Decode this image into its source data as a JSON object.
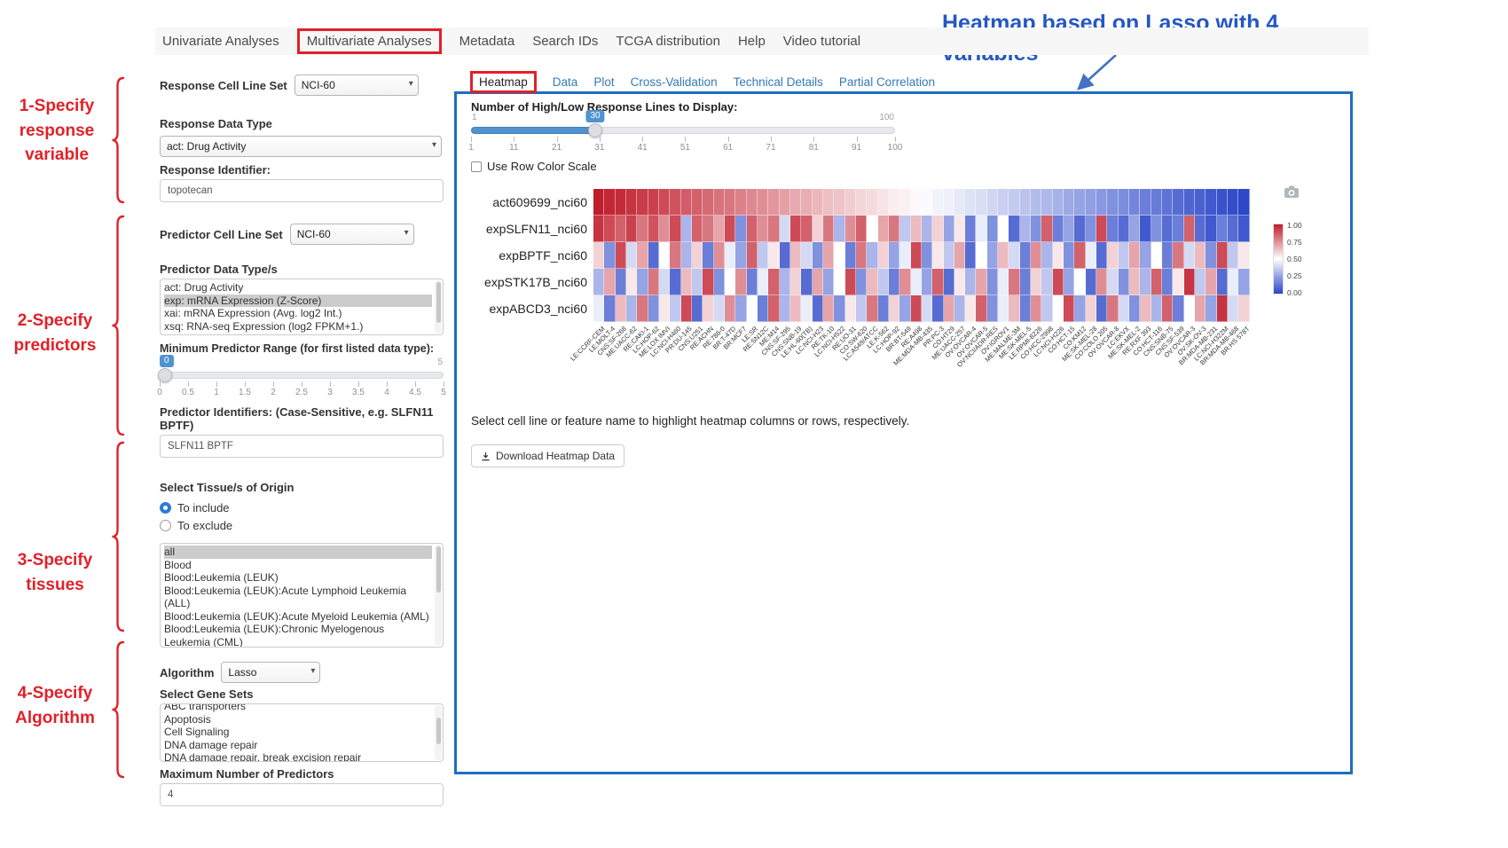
{
  "colors": {
    "annotation_red": "#e02128",
    "annotation_blue": "#2457c5",
    "panel_border_blue": "#1d6fc2",
    "link_blue": "#337ab7",
    "slider_blue": "#5193cf",
    "selected_option_bg": "#cccccc"
  },
  "icons": {
    "camera": "camera-icon",
    "download": "download-icon",
    "dropdown": "caret-down-icon"
  },
  "navbar": {
    "items": [
      {
        "label": "Univariate Analyses",
        "active": false
      },
      {
        "label": "Multivariate Analyses",
        "active": true
      },
      {
        "label": "Metadata",
        "active": false
      },
      {
        "label": "Search IDs",
        "active": false
      },
      {
        "label": "TCGA distribution",
        "active": false
      },
      {
        "label": "Help",
        "active": false
      },
      {
        "label": "Video tutorial",
        "active": false
      }
    ]
  },
  "annotations": {
    "note_line1": "Heatmap based on Lasso with 4",
    "note_line2": "variables",
    "steps": [
      {
        "lines": [
          "1-Specify",
          "response",
          "variable"
        ]
      },
      {
        "lines": [
          "2-Specify",
          "predictors"
        ]
      },
      {
        "lines": [
          "3-Specify",
          "tissues"
        ]
      },
      {
        "lines": [
          "4-Specify",
          "Algorithm"
        ]
      }
    ]
  },
  "sidebar": {
    "response_cell_line_set": {
      "label": "Response Cell Line Set",
      "value": "NCI-60"
    },
    "response_data_type": {
      "label": "Response Data Type",
      "value": "act: Drug Activity"
    },
    "response_identifier": {
      "label": "Response Identifier:",
      "value": "topotecan"
    },
    "predictor_cell_line_set": {
      "label": "Predictor Cell Line Set",
      "value": "NCI-60"
    },
    "predictor_data_types": {
      "label": "Predictor Data Type/s",
      "options": [
        "act: Drug Activity",
        "exp: mRNA Expression (Z-Score)",
        "xai: mRNA Expression (Avg. log2 Int.)",
        "xsq: RNA-seq Expression (log2 FPKM+1.)"
      ],
      "selected": "exp: mRNA Expression (Z-Score)"
    },
    "min_predictor_range": {
      "label": "Minimum Predictor Range (for first listed data type):",
      "min": 0,
      "max": 5,
      "value": 0,
      "ticks": [
        "0",
        "0.5",
        "1",
        "1.5",
        "2",
        "2.5",
        "3",
        "3.5",
        "4",
        "4.5",
        "5"
      ]
    },
    "predictor_identifiers": {
      "label": "Predictor Identifiers: (Case-Sensitive, e.g. SLFN11 BPTF)",
      "value": "SLFN11 BPTF"
    },
    "tissue_origin": {
      "label": "Select Tissue/s of Origin",
      "radios": [
        {
          "label": "To include",
          "checked": true
        },
        {
          "label": "To exclude",
          "checked": false
        }
      ],
      "options": [
        "all",
        "Blood",
        "Blood:Leukemia (LEUK)",
        "Blood:Leukemia (LEUK):Acute Lymphoid Leukemia (ALL)",
        "Blood:Leukemia (LEUK):Acute Myeloid Leukemia (AML)",
        "Blood:Leukemia (LEUK):Chronic Myelogenous Leukemia (CML)"
      ],
      "selected": "all"
    },
    "algorithm": {
      "label": "Algorithm",
      "value": "Lasso"
    },
    "gene_sets": {
      "label": "Select Gene Sets",
      "options": [
        "ABC transporters",
        "Apoptosis",
        "Cell Signaling",
        "DNA damage repair",
        "DNA damage repair, break excision repair"
      ]
    },
    "max_predictors": {
      "label": "Maximum Number of Predictors",
      "value": "4"
    }
  },
  "results": {
    "tabs": [
      {
        "label": "Heatmap",
        "active": true
      },
      {
        "label": "Data",
        "active": false
      },
      {
        "label": "Plot",
        "active": false
      },
      {
        "label": "Cross-Validation",
        "active": false
      },
      {
        "label": "Technical Details",
        "active": false
      },
      {
        "label": "Partial Correlation",
        "active": false
      }
    ],
    "display_slider": {
      "label": "Number of High/Low Response Lines to Display:",
      "min": 1,
      "max": 100,
      "value": 30,
      "ticks": [
        "1",
        "11",
        "21",
        "31",
        "41",
        "51",
        "61",
        "71",
        "81",
        "91",
        "100"
      ]
    },
    "row_color_checkbox": {
      "label": "Use Row Color Scale",
      "checked": false
    },
    "helper_text": "Select cell line or feature name to highlight heatmap columns or rows, respectively.",
    "download_button": "Download Heatmap Data"
  },
  "chart_data": {
    "type": "heatmap",
    "rows": [
      "act609699_nci60",
      "expSLFN11_nci60",
      "expBPTF_nci60",
      "expSTK17B_nci60",
      "expABCD3_nci60"
    ],
    "columns": [
      "LE:CCRF-CEM",
      "LE:MOLT-4",
      "CNS:SF-268",
      "ME:UACC-62",
      "RE:CAKI-1",
      "LC:HOP-62",
      "ME:LOX IMVI",
      "LC:NCI-H460",
      "PR:DU-145",
      "CNS:U251",
      "RE:ACHN",
      "RE:786-0",
      "BR:T-47D",
      "BR:MCF7",
      "LE:SR",
      "RE:SN12C",
      "ME:M14",
      "CNS:SF-295",
      "CNS:SNB-19",
      "LE:HL-60(TB)",
      "LC:NCI-H23",
      "RE:TK-10",
      "LC:NCI-H522",
      "RE:UO-31",
      "CO:SW-620",
      "LC:A549/ATCC",
      "LE:K-562",
      "LC:HOP-92",
      "BR:BT-549",
      "RE:A498",
      "ME:MDA-MB-435",
      "PR:PC-3",
      "CO:HT29",
      "ME:UACC-257",
      "OV:OVCAR-4",
      "OV:OVCAR-5",
      "OV:NCI/ADR-RES",
      "OV:IGROV1",
      "ME:MALME-3M",
      "ME:SK-MEL-5",
      "LE:RPMI-8226",
      "CO:HCC-2998",
      "LC:NCI-H226",
      "CO:HCT-15",
      "CO:KM12",
      "ME:SK-MEL-28",
      "CO:COLO 205",
      "OV:OVCAR-8",
      "LC:EKVX",
      "ME:SK-MEL-2",
      "RE:RXF 393",
      "CO:HCT-116",
      "CNS:SNB-75",
      "CNS:SF-539",
      "OV:OVCAR-3",
      "OV:SK-OV-3",
      "BR:MDA-MB-231",
      "LC:NCI-H322M",
      "BR:MDA-MB-468",
      "BR:HS 578T"
    ],
    "values": [
      [
        1.0,
        0.98,
        0.97,
        0.95,
        0.93,
        0.92,
        0.9,
        0.88,
        0.86,
        0.85,
        0.83,
        0.81,
        0.8,
        0.78,
        0.76,
        0.75,
        0.73,
        0.71,
        0.69,
        0.68,
        0.66,
        0.64,
        0.63,
        0.61,
        0.59,
        0.58,
        0.56,
        0.54,
        0.53,
        0.51,
        0.49,
        0.47,
        0.46,
        0.44,
        0.42,
        0.41,
        0.39,
        0.37,
        0.36,
        0.34,
        0.32,
        0.31,
        0.29,
        0.27,
        0.25,
        0.24,
        0.22,
        0.2,
        0.19,
        0.17,
        0.15,
        0.14,
        0.12,
        0.1,
        0.08,
        0.07,
        0.05,
        0.03,
        0.02,
        0.0
      ],
      [
        0.95,
        0.9,
        0.85,
        0.92,
        0.8,
        0.88,
        0.75,
        0.9,
        0.3,
        0.85,
        0.8,
        0.7,
        0.9,
        0.2,
        0.85,
        0.75,
        0.8,
        0.4,
        0.9,
        0.85,
        0.6,
        0.8,
        0.3,
        0.75,
        0.85,
        0.5,
        0.7,
        0.8,
        0.35,
        0.65,
        0.3,
        0.6,
        0.25,
        0.55,
        0.15,
        0.45,
        0.2,
        0.5,
        0.1,
        0.3,
        0.2,
        0.85,
        0.15,
        0.25,
        0.1,
        0.2,
        0.9,
        0.15,
        0.1,
        0.25,
        0.05,
        0.2,
        0.1,
        0.15,
        0.85,
        0.1,
        0.05,
        0.15,
        0.1,
        0.05
      ],
      [
        0.6,
        0.2,
        0.9,
        0.4,
        0.7,
        0.1,
        0.5,
        0.8,
        0.3,
        0.6,
        0.15,
        0.75,
        0.45,
        0.25,
        0.85,
        0.35,
        0.55,
        0.1,
        0.65,
        0.4,
        0.2,
        0.7,
        0.5,
        0.15,
        0.8,
        0.3,
        0.6,
        0.25,
        0.45,
        0.9,
        0.2,
        0.55,
        0.35,
        0.7,
        0.1,
        0.5,
        0.25,
        0.65,
        0.4,
        0.15,
        0.75,
        0.3,
        0.55,
        0.2,
        0.85,
        0.45,
        0.1,
        0.6,
        0.35,
        0.7,
        0.25,
        0.5,
        0.15,
        0.8,
        0.4,
        0.65,
        0.2,
        0.9,
        0.35,
        0.55
      ],
      [
        0.3,
        0.7,
        0.15,
        0.55,
        0.25,
        0.8,
        0.4,
        0.1,
        0.65,
        0.35,
        0.9,
        0.2,
        0.5,
        0.75,
        0.15,
        0.45,
        0.85,
        0.3,
        0.6,
        0.1,
        0.7,
        0.25,
        0.5,
        0.9,
        0.2,
        0.65,
        0.35,
        0.15,
        0.75,
        0.45,
        0.25,
        0.85,
        0.1,
        0.55,
        0.3,
        0.7,
        0.2,
        0.45,
        0.8,
        0.15,
        0.6,
        0.35,
        0.9,
        0.25,
        0.5,
        0.1,
        0.75,
        0.4,
        0.2,
        0.65,
        0.3,
        0.85,
        0.15,
        0.55,
        0.95,
        0.35,
        0.7,
        0.1,
        0.45,
        0.25
      ],
      [
        0.45,
        0.15,
        0.65,
        0.3,
        0.8,
        0.2,
        0.55,
        0.35,
        0.9,
        0.1,
        0.6,
        0.4,
        0.75,
        0.25,
        0.5,
        0.15,
        0.85,
        0.3,
        0.65,
        0.45,
        0.1,
        0.7,
        0.2,
        0.55,
        0.35,
        0.8,
        0.15,
        0.6,
        0.25,
        0.9,
        0.4,
        0.1,
        0.7,
        0.3,
        0.55,
        0.85,
        0.2,
        0.45,
        0.65,
        0.15,
        0.75,
        0.35,
        0.5,
        0.9,
        0.25,
        0.6,
        0.1,
        0.8,
        0.4,
        0.2,
        0.65,
        0.3,
        0.85,
        0.15,
        0.5,
        0.7,
        0.25,
        0.95,
        0.4,
        0.6
      ]
    ],
    "colorscale": {
      "min": 0,
      "max": 1,
      "low_color": "#2c47c8",
      "mid_color": "#ffffff",
      "high_color": "#c01d2c",
      "legend_ticks": [
        "1.00",
        "0.75",
        "0.50",
        "0.25",
        "0.00"
      ],
      "legend_position": "right"
    },
    "title": "",
    "xlabel": "",
    "ylabel": ""
  }
}
